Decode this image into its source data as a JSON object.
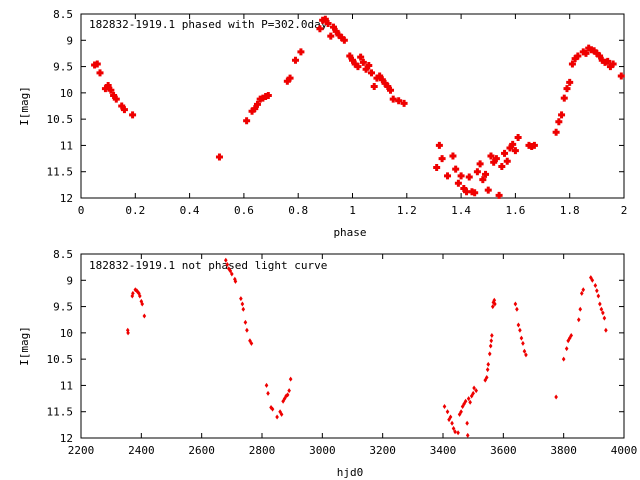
{
  "chart_data": [
    {
      "type": "scatter",
      "title": "182832-1919.1 phased with P=302.0day",
      "xlabel": "phase",
      "ylabel": "I[mag]",
      "xlim": [
        0,
        2
      ],
      "ylim": [
        12,
        8.5
      ],
      "y_inverted": true,
      "x_ticks": [
        "0",
        "0.2",
        "0.4",
        "0.6",
        "0.8",
        "1",
        "1.2",
        "1.4",
        "1.6",
        "1.8",
        "2"
      ],
      "x_tick_values": [
        0,
        0.2,
        0.4,
        0.6,
        0.8,
        1.0,
        1.2,
        1.4,
        1.6,
        1.8,
        2.0
      ],
      "y_ticks": [
        "8.5",
        "9",
        "9.5",
        "10",
        "10.5",
        "11",
        "11.5",
        "12"
      ],
      "y_tick_values": [
        8.5,
        9,
        9.5,
        10,
        10.5,
        11,
        11.5,
        12
      ],
      "grid": false,
      "marker_color": "#ee0000",
      "points": [
        [
          0.05,
          9.47
        ],
        [
          0.06,
          9.45
        ],
        [
          0.07,
          9.62
        ],
        [
          0.09,
          9.92
        ],
        [
          0.1,
          9.86
        ],
        [
          0.11,
          9.95
        ],
        [
          0.12,
          10.05
        ],
        [
          0.13,
          10.12
        ],
        [
          0.15,
          10.25
        ],
        [
          0.16,
          10.32
        ],
        [
          0.19,
          10.42
        ],
        [
          0.51,
          11.22
        ],
        [
          0.61,
          10.53
        ],
        [
          0.63,
          10.35
        ],
        [
          0.64,
          10.3
        ],
        [
          0.65,
          10.22
        ],
        [
          0.66,
          10.12
        ],
        [
          0.67,
          10.1
        ],
        [
          0.68,
          10.07
        ],
        [
          0.69,
          10.05
        ],
        [
          0.76,
          9.78
        ],
        [
          0.77,
          9.72
        ],
        [
          0.79,
          9.38
        ],
        [
          0.81,
          9.22
        ],
        [
          0.88,
          8.78
        ],
        [
          0.89,
          8.62
        ],
        [
          0.9,
          8.6
        ],
        [
          0.91,
          8.68
        ],
        [
          0.92,
          8.92
        ],
        [
          0.93,
          8.75
        ],
        [
          0.94,
          8.83
        ],
        [
          0.95,
          8.9
        ],
        [
          0.96,
          8.95
        ],
        [
          0.97,
          9.0
        ],
        [
          0.99,
          9.3
        ],
        [
          1.0,
          9.38
        ],
        [
          1.01,
          9.45
        ],
        [
          1.02,
          9.5
        ],
        [
          1.03,
          9.32
        ],
        [
          1.04,
          9.42
        ],
        [
          1.05,
          9.55
        ],
        [
          1.06,
          9.48
        ],
        [
          1.07,
          9.62
        ],
        [
          1.08,
          9.88
        ],
        [
          1.09,
          9.72
        ],
        [
          1.1,
          9.68
        ],
        [
          1.11,
          9.75
        ],
        [
          1.12,
          9.82
        ],
        [
          1.13,
          9.88
        ],
        [
          1.14,
          9.95
        ],
        [
          1.15,
          10.12
        ],
        [
          1.17,
          10.15
        ],
        [
          1.19,
          10.2
        ],
        [
          1.31,
          11.42
        ],
        [
          1.32,
          11.0
        ],
        [
          1.33,
          11.25
        ],
        [
          1.35,
          11.58
        ],
        [
          1.37,
          11.2
        ],
        [
          1.38,
          11.45
        ],
        [
          1.39,
          11.72
        ],
        [
          1.4,
          11.58
        ],
        [
          1.41,
          11.82
        ],
        [
          1.42,
          11.88
        ],
        [
          1.43,
          11.6
        ],
        [
          1.44,
          11.88
        ],
        [
          1.45,
          11.9
        ],
        [
          1.46,
          11.5
        ],
        [
          1.47,
          11.35
        ],
        [
          1.48,
          11.65
        ],
        [
          1.49,
          11.55
        ],
        [
          1.5,
          11.85
        ],
        [
          1.51,
          11.2
        ],
        [
          1.52,
          11.32
        ],
        [
          1.53,
          11.25
        ],
        [
          1.54,
          11.95
        ],
        [
          1.55,
          11.4
        ],
        [
          1.56,
          11.15
        ],
        [
          1.57,
          11.3
        ],
        [
          1.58,
          11.05
        ],
        [
          1.59,
          10.98
        ],
        [
          1.6,
          11.1
        ],
        [
          1.61,
          10.85
        ],
        [
          1.65,
          11.0
        ],
        [
          1.66,
          11.02
        ],
        [
          1.67,
          11.0
        ],
        [
          1.75,
          10.75
        ],
        [
          1.76,
          10.55
        ],
        [
          1.77,
          10.42
        ],
        [
          1.78,
          10.1
        ],
        [
          1.79,
          9.92
        ],
        [
          1.8,
          9.8
        ],
        [
          1.81,
          9.45
        ],
        [
          1.82,
          9.35
        ],
        [
          1.83,
          9.3
        ],
        [
          1.85,
          9.22
        ],
        [
          1.86,
          9.25
        ],
        [
          1.87,
          9.15
        ],
        [
          1.88,
          9.18
        ],
        [
          1.89,
          9.2
        ],
        [
          1.9,
          9.25
        ],
        [
          1.91,
          9.3
        ],
        [
          1.92,
          9.38
        ],
        [
          1.93,
          9.42
        ],
        [
          1.94,
          9.4
        ],
        [
          1.95,
          9.5
        ],
        [
          1.96,
          9.45
        ],
        [
          1.99,
          9.68
        ]
      ]
    },
    {
      "type": "scatter",
      "title": "182832-1919.1 not phased light curve",
      "xlabel": "hjd0",
      "ylabel": "I[mag]",
      "xlim": [
        2200,
        4000
      ],
      "ylim": [
        12,
        8.5
      ],
      "y_inverted": true,
      "x_ticks": [
        "2200",
        "2400",
        "2600",
        "2800",
        "3000",
        "3200",
        "3400",
        "3600",
        "3800",
        "4000"
      ],
      "x_tick_values": [
        2200,
        2400,
        2600,
        2800,
        3000,
        3200,
        3400,
        3600,
        3800,
        4000
      ],
      "y_ticks": [
        "8.5",
        "9",
        "9.5",
        "10",
        "10.5",
        "11",
        "11.5",
        "12"
      ],
      "y_tick_values": [
        8.5,
        9,
        9.5,
        10,
        10.5,
        11,
        11.5,
        12
      ],
      "grid": false,
      "marker_color": "#ee0000",
      "points": [
        [
          2355,
          9.95
        ],
        [
          2356,
          10.0
        ],
        [
          2370,
          9.3
        ],
        [
          2372,
          9.25
        ],
        [
          2380,
          9.18
        ],
        [
          2385,
          9.2
        ],
        [
          2388,
          9.22
        ],
        [
          2392,
          9.25
        ],
        [
          2395,
          9.3
        ],
        [
          2400,
          9.4
        ],
        [
          2403,
          9.45
        ],
        [
          2410,
          9.68
        ],
        [
          2680,
          8.62
        ],
        [
          2685,
          8.7
        ],
        [
          2690,
          8.78
        ],
        [
          2695,
          8.82
        ],
        [
          2700,
          8.88
        ],
        [
          2710,
          8.98
        ],
        [
          2712,
          9.02
        ],
        [
          2730,
          9.35
        ],
        [
          2735,
          9.45
        ],
        [
          2738,
          9.55
        ],
        [
          2745,
          9.8
        ],
        [
          2750,
          9.95
        ],
        [
          2760,
          10.15
        ],
        [
          2765,
          10.2
        ],
        [
          2815,
          11.0
        ],
        [
          2820,
          11.15
        ],
        [
          2830,
          11.42
        ],
        [
          2835,
          11.45
        ],
        [
          2850,
          11.6
        ],
        [
          2860,
          11.5
        ],
        [
          2865,
          11.55
        ],
        [
          2870,
          11.3
        ],
        [
          2875,
          11.25
        ],
        [
          2880,
          11.2
        ],
        [
          2885,
          11.18
        ],
        [
          2890,
          11.1
        ],
        [
          2895,
          10.88
        ],
        [
          3405,
          11.4
        ],
        [
          3415,
          11.5
        ],
        [
          3420,
          11.65
        ],
        [
          3425,
          11.6
        ],
        [
          3430,
          11.72
        ],
        [
          3435,
          11.82
        ],
        [
          3440,
          11.88
        ],
        [
          3450,
          11.9
        ],
        [
          3455,
          11.55
        ],
        [
          3460,
          11.5
        ],
        [
          3465,
          11.4
        ],
        [
          3470,
          11.35
        ],
        [
          3475,
          11.3
        ],
        [
          3480,
          11.72
        ],
        [
          3482,
          11.95
        ],
        [
          3485,
          11.25
        ],
        [
          3490,
          11.32
        ],
        [
          3495,
          11.2
        ],
        [
          3500,
          11.15
        ],
        [
          3503,
          11.05
        ],
        [
          3510,
          11.1
        ],
        [
          3540,
          10.9
        ],
        [
          3545,
          10.85
        ],
        [
          3548,
          10.7
        ],
        [
          3550,
          10.6
        ],
        [
          3555,
          10.4
        ],
        [
          3558,
          10.25
        ],
        [
          3560,
          10.15
        ],
        [
          3562,
          10.05
        ],
        [
          3565,
          9.5
        ],
        [
          3567,
          9.42
        ],
        [
          3570,
          9.38
        ],
        [
          3572,
          9.45
        ],
        [
          3640,
          9.45
        ],
        [
          3645,
          9.55
        ],
        [
          3650,
          9.85
        ],
        [
          3655,
          9.95
        ],
        [
          3660,
          10.1
        ],
        [
          3665,
          10.2
        ],
        [
          3670,
          10.35
        ],
        [
          3675,
          10.42
        ],
        [
          3775,
          11.22
        ],
        [
          3800,
          10.5
        ],
        [
          3810,
          10.3
        ],
        [
          3815,
          10.15
        ],
        [
          3820,
          10.1
        ],
        [
          3825,
          10.05
        ],
        [
          3850,
          9.75
        ],
        [
          3855,
          9.55
        ],
        [
          3860,
          9.25
        ],
        [
          3865,
          9.18
        ],
        [
          3890,
          8.95
        ],
        [
          3895,
          9.0
        ],
        [
          3905,
          9.1
        ],
        [
          3910,
          9.2
        ],
        [
          3915,
          9.3
        ],
        [
          3920,
          9.45
        ],
        [
          3925,
          9.55
        ],
        [
          3930,
          9.62
        ],
        [
          3935,
          9.72
        ],
        [
          3940,
          9.95
        ]
      ]
    }
  ]
}
